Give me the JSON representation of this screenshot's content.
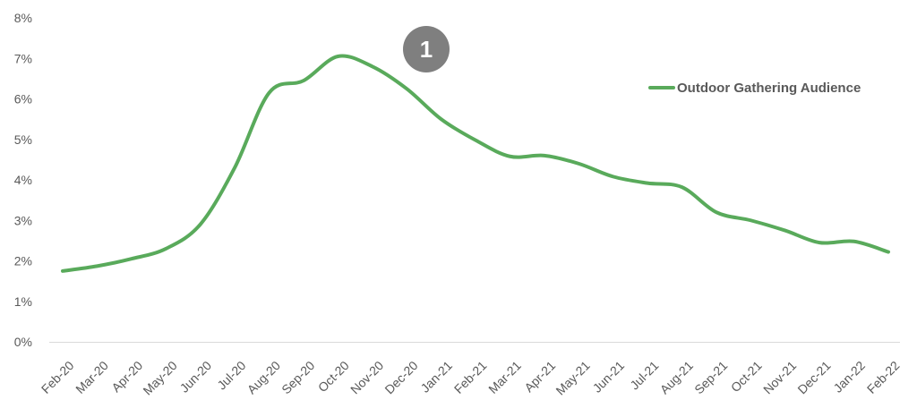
{
  "chart_data": {
    "type": "line",
    "x": [
      "Feb-20",
      "Mar-20",
      "Apr-20",
      "May-20",
      "Jun-20",
      "Jul-20",
      "Aug-20",
      "Sep-20",
      "Oct-20",
      "Nov-20",
      "Dec-20",
      "Jan-21",
      "Feb-21",
      "Mar-21",
      "Apr-21",
      "May-21",
      "Jun-21",
      "Jul-21",
      "Aug-21",
      "Sep-21",
      "Oct-21",
      "Nov-21",
      "Dec-21",
      "Jan-22",
      "Feb-22"
    ],
    "series": [
      {
        "name": "Outdoor Gathering Audience",
        "color": "#59aa5b",
        "values": [
          1.75,
          1.87,
          2.05,
          2.3,
          2.9,
          4.3,
          6.15,
          6.45,
          7.05,
          6.8,
          6.25,
          5.5,
          4.98,
          4.58,
          4.6,
          4.4,
          4.08,
          3.92,
          3.82,
          3.2,
          3.0,
          2.75,
          2.45,
          2.48,
          2.22
        ]
      }
    ],
    "y_ticks": [
      "0%",
      "1%",
      "2%",
      "3%",
      "4%",
      "5%",
      "6%",
      "7%",
      "8%"
    ],
    "ylim": [
      0,
      8
    ],
    "grid": false,
    "legend_position": "top-right",
    "annotation": {
      "label": "1",
      "color": "#7f7f7f"
    }
  }
}
